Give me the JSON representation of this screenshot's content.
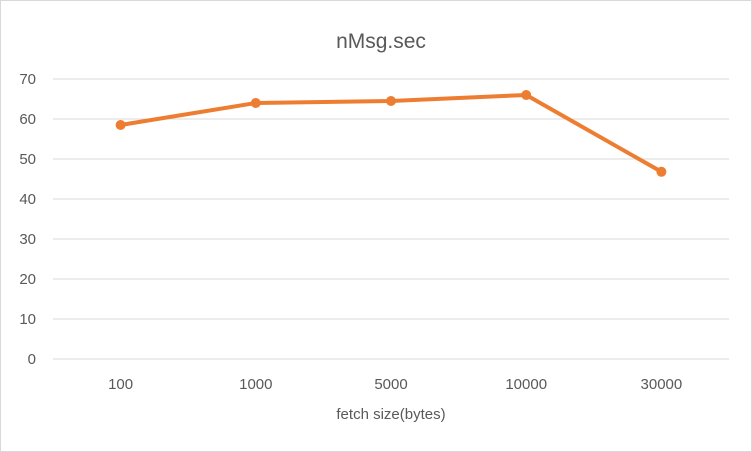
{
  "chart_data": {
    "type": "line",
    "title": "nMsg.sec",
    "xlabel": "fetch size(bytes)",
    "ylabel": "",
    "categories": [
      "100",
      "1000",
      "5000",
      "10000",
      "30000"
    ],
    "series": [
      {
        "values": [
          58.5,
          64,
          64.5,
          66,
          46.8
        ]
      }
    ],
    "ylim": [
      0,
      70
    ],
    "yticks": [
      0,
      10,
      20,
      30,
      40,
      50,
      60,
      70
    ],
    "grid": true,
    "legend": "none",
    "colors": {
      "series": "#ED7D31",
      "grid": "#d9d9d9",
      "text": "#595959"
    }
  }
}
